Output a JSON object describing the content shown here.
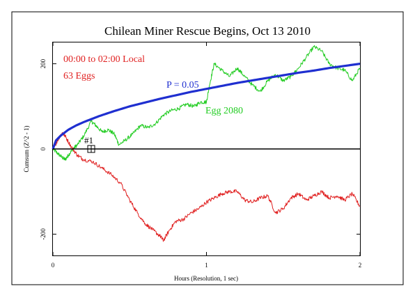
{
  "chart_data": {
    "type": "line",
    "title": "Chilean Miner Rescue Begins, Oct 13 2010",
    "xlabel": "Hours (Resolution, 1 sec)",
    "ylabel": "Cumsum (Z^2 - 1)",
    "xlim": [
      0,
      2
    ],
    "ylim": [
      -250,
      250
    ],
    "x_ticks": [
      0,
      1,
      2
    ],
    "y_ticks": [
      -200,
      0,
      200
    ],
    "grid": false,
    "annotations": [
      {
        "text": "00:00 to 02:00 Local",
        "color": "#e02020"
      },
      {
        "text": "63 Eggs",
        "color": "#e02020"
      },
      {
        "text": "P = 0.05",
        "color": "#1f2fd0"
      },
      {
        "text": "Egg 2080",
        "color": "#22cc22"
      },
      {
        "text": "#1",
        "color": "#000000"
      }
    ],
    "series": [
      {
        "name": "",
        "role": "cumulative deviation",
        "color": "#e02020",
        "x": [
          0,
          0.03,
          0.06,
          0.08,
          0.12,
          0.16,
          0.2,
          0.26,
          0.32,
          0.38,
          0.44,
          0.5,
          0.55,
          0.6,
          0.65,
          0.7,
          0.72,
          0.76,
          0.8,
          0.85,
          0.9,
          0.95,
          1.0,
          1.05,
          1.1,
          1.15,
          1.2,
          1.25,
          1.3,
          1.35,
          1.4,
          1.45,
          1.5,
          1.55,
          1.6,
          1.65,
          1.7,
          1.75,
          1.8,
          1.85,
          1.9,
          1.95,
          2.0
        ],
        "y": [
          0,
          20,
          38,
          30,
          5,
          -15,
          -25,
          -30,
          -45,
          -60,
          -80,
          -120,
          -150,
          -175,
          -190,
          -205,
          -215,
          -190,
          -170,
          -165,
          -150,
          -140,
          -125,
          -115,
          -105,
          -100,
          -100,
          -120,
          -125,
          -115,
          -110,
          -150,
          -140,
          -115,
          -105,
          -120,
          -110,
          -100,
          -115,
          -110,
          -120,
          -105,
          -135
        ]
      },
      {
        "name": "P = 0.05",
        "role": "significance envelope",
        "color": "#1f2fd0",
        "x": [
          0,
          0.02,
          0.05,
          0.1,
          0.15,
          0.2,
          0.3,
          0.4,
          0.5,
          0.6,
          0.7,
          0.8,
          0.9,
          1.0,
          1.1,
          1.2,
          1.3,
          1.4,
          1.5,
          1.6,
          1.7,
          1.8,
          1.9,
          2.0
        ],
        "y": [
          0,
          20,
          31,
          45,
          55,
          63,
          77,
          89,
          100,
          109,
          118,
          126,
          134,
          141,
          148,
          155,
          161,
          167,
          173,
          179,
          184,
          190,
          195,
          200
        ]
      },
      {
        "name": "Egg 2080",
        "role": "single egg",
        "color": "#22cc22",
        "x": [
          0,
          0.03,
          0.06,
          0.08,
          0.1,
          0.13,
          0.16,
          0.2,
          0.25,
          0.28,
          0.32,
          0.36,
          0.4,
          0.43,
          0.47,
          0.52,
          0.57,
          0.62,
          0.67,
          0.72,
          0.77,
          0.82,
          0.87,
          0.92,
          0.96,
          1.0,
          1.02,
          1.05,
          1.1,
          1.15,
          1.2,
          1.25,
          1.3,
          1.35,
          1.4,
          1.45,
          1.5,
          1.55,
          1.6,
          1.65,
          1.7,
          1.75,
          1.8,
          1.85,
          1.9,
          1.95,
          2.0
        ],
        "y": [
          0,
          -10,
          -20,
          -25,
          -15,
          0,
          10,
          30,
          65,
          55,
          40,
          45,
          35,
          10,
          20,
          35,
          55,
          50,
          60,
          80,
          90,
          95,
          105,
          100,
          110,
          110,
          150,
          200,
          185,
          170,
          190,
          170,
          150,
          135,
          160,
          175,
          160,
          170,
          190,
          215,
          240,
          230,
          200,
          190,
          185,
          160,
          190
        ]
      }
    ]
  }
}
